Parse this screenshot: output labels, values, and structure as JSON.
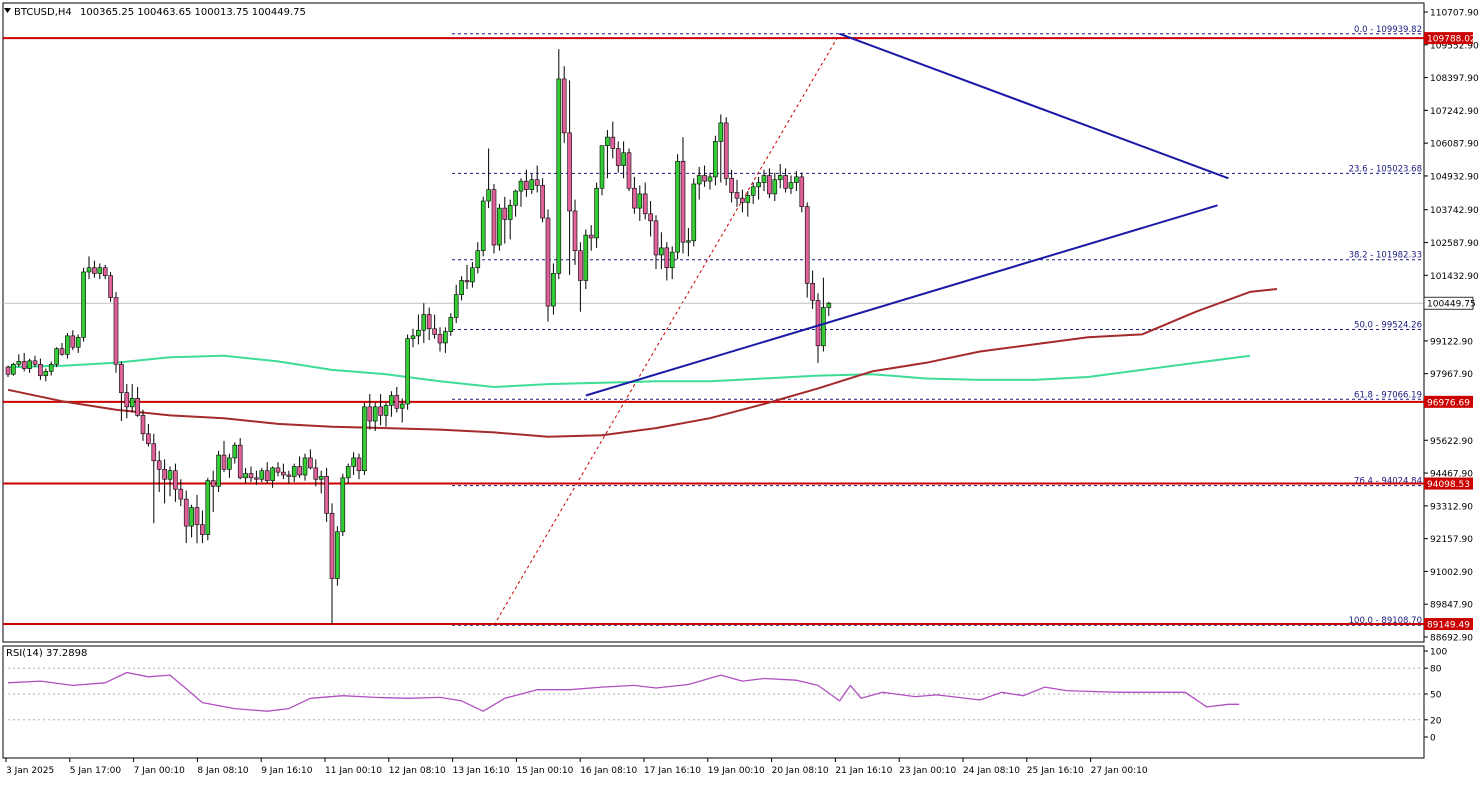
{
  "header": {
    "symbol": "BTCUSD,H4",
    "ohlc": "100365.25 100463.65 100013.75 100449.75"
  },
  "indicator": {
    "label": "RSI(14) 37.2898",
    "levels": [
      "100",
      "80",
      "50",
      "20",
      "0"
    ]
  },
  "colors": {
    "bull_candle": "#32cd32",
    "bear_candle": "#e0609a",
    "ma_fast": "#3ddc97",
    "ma_slow": "#a52a2a",
    "trendline": "#1a1aa8",
    "horizontal_level": "#cc0000",
    "fib": "#1a1a80",
    "rsi_line": "#b050c0",
    "price_badge": "#cc0000",
    "current_price_badge": "#ffffff"
  },
  "chart_data": {
    "type": "candlestick",
    "ylim": [
      88692.9,
      110707.9
    ],
    "price_ticks": [
      "110707.90",
      "109552.90",
      "108397.90",
      "107242.90",
      "106087.90",
      "104932.90",
      "103742.90",
      "102587.90",
      "101432.90",
      "99122.90",
      "97967.90",
      "95622.90",
      "94467.90",
      "93312.90",
      "92157.90",
      "91002.90",
      "89847.90",
      "88692.90"
    ],
    "time_labels": [
      "3 Jan 2025",
      "5 Jan 17:00",
      "7 Jan 00:10",
      "8 Jan 08:10",
      "9 Jan 16:10",
      "11 Jan 00:10",
      "12 Jan 08:10",
      "13 Jan 16:10",
      "15 Jan 00:10",
      "16 Jan 08:10",
      "17 Jan 16:10",
      "19 Jan 00:10",
      "20 Jan 08:10",
      "21 Jan 16:10",
      "23 Jan 00:10",
      "24 Jan 08:10",
      "25 Jan 16:10",
      "27 Jan 00:10"
    ],
    "horizontal_levels": [
      {
        "price": 109788.02,
        "label": "109788.02"
      },
      {
        "price": 96976.69,
        "label": "96976.69"
      },
      {
        "price": 94098.53,
        "label": "94098.53"
      },
      {
        "price": 89149.49,
        "label": "89149.49"
      }
    ],
    "current_price": {
      "price": 100449.75,
      "label": "100449.75"
    },
    "fibonacci": [
      {
        "price": 109939.82,
        "label": "0.0 - 109939.82"
      },
      {
        "price": 105023.68,
        "label": "23.6 - 105023.68"
      },
      {
        "price": 101982.33,
        "label": "38.2 - 101982.33"
      },
      {
        "price": 99524.26,
        "label": "50.0 - 99524.26"
      },
      {
        "price": 97066.19,
        "label": "61.8 - 97066.19"
      },
      {
        "price": 94024.84,
        "label": "76.4 - 94024.84"
      },
      {
        "price": 89108.7,
        "label": "100.0 - 89108.70"
      }
    ],
    "fib_anchor": {
      "low": {
        "bar": 90,
        "price": 89108.7
      },
      "high": {
        "bar": 154,
        "price": 109939.82
      }
    },
    "trendlines": [
      {
        "from": {
          "bar": 107,
          "price": 97200
        },
        "to": {
          "bar": 224,
          "price": 103900
        }
      },
      {
        "from": {
          "bar": 154,
          "price": 109939
        },
        "to": {
          "bar": 226,
          "price": 104850
        }
      }
    ],
    "candles": [
      [
        98200,
        98250,
        97850,
        97950
      ],
      [
        97950,
        98350,
        97900,
        98300
      ],
      [
        98300,
        98650,
        98200,
        98400
      ],
      [
        98400,
        98700,
        98050,
        98150
      ],
      [
        98150,
        98500,
        98000,
        98420
      ],
      [
        98420,
        98600,
        98200,
        98300
      ],
      [
        98300,
        98500,
        97750,
        97900
      ],
      [
        97900,
        98150,
        97700,
        98050
      ],
      [
        98050,
        98400,
        97900,
        98300
      ],
      [
        98300,
        98900,
        98200,
        98850
      ],
      [
        98850,
        99050,
        98600,
        98650
      ],
      [
        98650,
        99400,
        98500,
        99300
      ],
      [
        99300,
        99500,
        98800,
        98900
      ],
      [
        98900,
        99350,
        98700,
        99250
      ],
      [
        99250,
        101700,
        99100,
        101550
      ],
      [
        101550,
        102100,
        101300,
        101700
      ],
      [
        101700,
        101950,
        101350,
        101500
      ],
      [
        101500,
        101850,
        101300,
        101700
      ],
      [
        101700,
        101800,
        101300,
        101420
      ],
      [
        101420,
        101550,
        100500,
        100650
      ],
      [
        100650,
        100850,
        98000,
        98300
      ],
      [
        98300,
        98400,
        96300,
        97300
      ],
      [
        97300,
        97600,
        96400,
        96800
      ],
      [
        96800,
        97600,
        96600,
        97100
      ],
      [
        97100,
        97500,
        96450,
        96500
      ],
      [
        96500,
        96700,
        95600,
        95850
      ],
      [
        95850,
        96200,
        95400,
        95500
      ],
      [
        95500,
        95850,
        92700,
        94900
      ],
      [
        94900,
        95250,
        93800,
        94600
      ],
      [
        94600,
        94950,
        93400,
        94250
      ],
      [
        94250,
        94700,
        93650,
        94550
      ],
      [
        94550,
        94800,
        93450,
        93900
      ],
      [
        93900,
        94250,
        93300,
        93550
      ],
      [
        93550,
        93850,
        92000,
        92600
      ],
      [
        92600,
        93350,
        92200,
        93250
      ],
      [
        93250,
        93700,
        92000,
        92650
      ],
      [
        92650,
        93150,
        92000,
        92300
      ],
      [
        92300,
        94300,
        92100,
        94200
      ],
      [
        94200,
        94550,
        93100,
        94000
      ],
      [
        94000,
        95250,
        93800,
        95100
      ],
      [
        95100,
        95600,
        94500,
        94600
      ],
      [
        94600,
        95150,
        94300,
        95000
      ],
      [
        95000,
        95550,
        94800,
        95450
      ],
      [
        95450,
        95700,
        94250,
        94300
      ],
      [
        94300,
        94650,
        94100,
        94450
      ],
      [
        94450,
        94700,
        94150,
        94300
      ],
      [
        94300,
        94550,
        94050,
        94250
      ],
      [
        94250,
        94650,
        94150,
        94550
      ],
      [
        94550,
        94850,
        94100,
        94200
      ],
      [
        94200,
        94700,
        93950,
        94650
      ],
      [
        94650,
        94850,
        94350,
        94500
      ],
      [
        94500,
        94800,
        94250,
        94400
      ],
      [
        94400,
        94550,
        94100,
        94350
      ],
      [
        94350,
        94800,
        94150,
        94700
      ],
      [
        94700,
        95050,
        94300,
        94400
      ],
      [
        94400,
        95150,
        94200,
        95000
      ],
      [
        95000,
        95300,
        94600,
        94650
      ],
      [
        94650,
        94950,
        94000,
        94250
      ],
      [
        94250,
        94550,
        93750,
        94350
      ],
      [
        94350,
        94650,
        92750,
        93050
      ],
      [
        93050,
        93400,
        89150,
        90750
      ],
      [
        90750,
        92600,
        90500,
        92400
      ],
      [
        92400,
        94450,
        92250,
        94300
      ],
      [
        94300,
        94800,
        94100,
        94700
      ],
      [
        94700,
        95200,
        94400,
        95000
      ],
      [
        95000,
        95150,
        94250,
        94550
      ],
      [
        94550,
        96950,
        94400,
        96800
      ],
      [
        96800,
        97250,
        96000,
        96300
      ],
      [
        96300,
        96950,
        95950,
        96800
      ],
      [
        96800,
        97250,
        96150,
        96500
      ],
      [
        96500,
        96950,
        96100,
        96850
      ],
      [
        96850,
        97350,
        96450,
        97200
      ],
      [
        97200,
        97500,
        96600,
        96750
      ],
      [
        96750,
        97100,
        96250,
        96900
      ],
      [
        96900,
        99350,
        96700,
        99200
      ],
      [
        99200,
        99550,
        98900,
        99300
      ],
      [
        99300,
        100050,
        99000,
        99500
      ],
      [
        99500,
        100450,
        99050,
        100050
      ],
      [
        100050,
        100300,
        99150,
        99550
      ],
      [
        99550,
        100050,
        99200,
        99350
      ],
      [
        99350,
        99600,
        98750,
        99050
      ],
      [
        99050,
        99600,
        98700,
        99450
      ],
      [
        99450,
        100100,
        99300,
        99950
      ],
      [
        99950,
        101100,
        99750,
        100750
      ],
      [
        100750,
        101400,
        100550,
        101250
      ],
      [
        101250,
        101800,
        100950,
        101200
      ],
      [
        101200,
        101900,
        101000,
        101700
      ],
      [
        101700,
        102600,
        101500,
        102300
      ],
      [
        102300,
        104200,
        102100,
        104050
      ],
      [
        104050,
        105900,
        103800,
        104450
      ],
      [
        104450,
        104650,
        102200,
        102500
      ],
      [
        102500,
        103950,
        102300,
        103800
      ],
      [
        103800,
        104200,
        102550,
        103400
      ],
      [
        103400,
        104100,
        102700,
        103900
      ],
      [
        103900,
        104450,
        103500,
        104400
      ],
      [
        104400,
        104850,
        103850,
        104750
      ],
      [
        104750,
        105150,
        104200,
        104450
      ],
      [
        104450,
        105000,
        104300,
        104800
      ],
      [
        104800,
        105300,
        104350,
        104600
      ],
      [
        104600,
        104850,
        103300,
        103450
      ],
      [
        103450,
        103750,
        99800,
        100350
      ],
      [
        100350,
        101850,
        100050,
        101500
      ],
      [
        101500,
        109400,
        101300,
        108350
      ],
      [
        108350,
        108800,
        106100,
        106450
      ],
      [
        106450,
        108300,
        101450,
        103700
      ],
      [
        103700,
        104100,
        101800,
        102300
      ],
      [
        102300,
        102600,
        100150,
        101250
      ],
      [
        101250,
        103050,
        100950,
        102850
      ],
      [
        102850,
        103200,
        102300,
        102750
      ],
      [
        102750,
        104700,
        102400,
        104500
      ],
      [
        104500,
        105950,
        104250,
        106000
      ],
      [
        106000,
        106550,
        104850,
        106300
      ],
      [
        106300,
        106850,
        105550,
        105900
      ],
      [
        105900,
        106150,
        105050,
        105300
      ],
      [
        105300,
        106150,
        104850,
        105750
      ],
      [
        105750,
        105900,
        104400,
        104500
      ],
      [
        104500,
        104900,
        103600,
        103800
      ],
      [
        103800,
        104600,
        103350,
        104300
      ],
      [
        104300,
        104700,
        103400,
        103600
      ],
      [
        103600,
        104050,
        102800,
        103350
      ],
      [
        103350,
        103550,
        101650,
        102150
      ],
      [
        102150,
        102950,
        101650,
        102400
      ],
      [
        102400,
        102600,
        101250,
        101700
      ],
      [
        101700,
        102450,
        101300,
        102250
      ],
      [
        102250,
        105700,
        102000,
        105450
      ],
      [
        105450,
        106300,
        102200,
        102600
      ],
      [
        102600,
        103100,
        102100,
        102650
      ],
      [
        102650,
        104850,
        102450,
        104650
      ],
      [
        104650,
        105250,
        104100,
        104950
      ],
      [
        104950,
        105300,
        104550,
        104750
      ],
      [
        104750,
        105050,
        104450,
        104900
      ],
      [
        104900,
        106350,
        104600,
        106150
      ],
      [
        106150,
        107100,
        104700,
        106800
      ],
      [
        106800,
        107000,
        104600,
        104850
      ],
      [
        104850,
        105150,
        104000,
        104350
      ],
      [
        104350,
        104800,
        103850,
        104150
      ],
      [
        104150,
        104450,
        103650,
        104000
      ],
      [
        104000,
        104400,
        103500,
        104250
      ],
      [
        104250,
        104700,
        103950,
        104550
      ],
      [
        104550,
        104900,
        104100,
        104700
      ],
      [
        104700,
        105150,
        104400,
        104950
      ],
      [
        104950,
        105200,
        104150,
        104300
      ],
      [
        104300,
        105050,
        104050,
        104800
      ],
      [
        104800,
        105350,
        104500,
        104950
      ],
      [
        104950,
        105200,
        104350,
        104500
      ],
      [
        104500,
        104950,
        104300,
        104700
      ],
      [
        104700,
        105100,
        104400,
        104900
      ],
      [
        104900,
        105050,
        103650,
        103850
      ],
      [
        103850,
        104000,
        100650,
        101150
      ],
      [
        101150,
        101600,
        100250,
        100550
      ],
      [
        100550,
        100800,
        98350,
        98950
      ],
      [
        98950,
        101350,
        98750,
        100300
      ],
      [
        100300,
        100500,
        100000,
        100450
      ]
    ],
    "ma_fast": [
      [
        0,
        98200
      ],
      [
        10,
        98250
      ],
      [
        20,
        98350
      ],
      [
        30,
        98550
      ],
      [
        40,
        98600
      ],
      [
        50,
        98400
      ],
      [
        60,
        98100
      ],
      [
        70,
        97950
      ],
      [
        80,
        97700
      ],
      [
        90,
        97500
      ],
      [
        100,
        97600
      ],
      [
        110,
        97650
      ],
      [
        120,
        97700
      ],
      [
        130,
        97700
      ],
      [
        140,
        97800
      ],
      [
        150,
        97900
      ],
      [
        160,
        97950
      ],
      [
        170,
        97800
      ],
      [
        180,
        97750
      ],
      [
        190,
        97750
      ],
      [
        200,
        97850
      ],
      [
        210,
        98100
      ],
      [
        220,
        98350
      ],
      [
        230,
        98600
      ]
    ],
    "ma_slow": [
      [
        0,
        97400
      ],
      [
        10,
        97000
      ],
      [
        20,
        96700
      ],
      [
        30,
        96500
      ],
      [
        40,
        96400
      ],
      [
        50,
        96200
      ],
      [
        60,
        96100
      ],
      [
        70,
        96050
      ],
      [
        80,
        96000
      ],
      [
        90,
        95900
      ],
      [
        100,
        95750
      ],
      [
        110,
        95800
      ],
      [
        120,
        96050
      ],
      [
        130,
        96400
      ],
      [
        140,
        96900
      ],
      [
        150,
        97450
      ],
      [
        160,
        98050
      ],
      [
        170,
        98350
      ],
      [
        180,
        98750
      ],
      [
        190,
        99000
      ],
      [
        200,
        99250
      ],
      [
        210,
        99350
      ],
      [
        220,
        100150
      ],
      [
        230,
        100850
      ],
      [
        235,
        100950
      ]
    ],
    "rsi": [
      [
        0,
        63
      ],
      [
        6,
        65
      ],
      [
        12,
        60
      ],
      [
        18,
        63
      ],
      [
        22,
        75
      ],
      [
        26,
        70
      ],
      [
        30,
        72
      ],
      [
        33,
        56
      ],
      [
        36,
        40
      ],
      [
        42,
        33
      ],
      [
        48,
        30
      ],
      [
        52,
        33
      ],
      [
        56,
        45
      ],
      [
        62,
        48
      ],
      [
        68,
        46
      ],
      [
        74,
        45
      ],
      [
        80,
        46
      ],
      [
        84,
        42
      ],
      [
        88,
        30
      ],
      [
        92,
        45
      ],
      [
        98,
        55
      ],
      [
        104,
        55
      ],
      [
        110,
        58
      ],
      [
        116,
        60
      ],
      [
        120,
        57
      ],
      [
        126,
        61
      ],
      [
        132,
        72
      ],
      [
        136,
        65
      ],
      [
        140,
        68
      ],
      [
        146,
        66
      ],
      [
        150,
        60
      ],
      [
        154,
        42
      ],
      [
        156,
        60
      ],
      [
        158,
        45
      ],
      [
        162,
        52
      ],
      [
        168,
        47
      ],
      [
        172,
        49
      ],
      [
        176,
        46
      ],
      [
        180,
        43
      ],
      [
        184,
        52
      ],
      [
        188,
        48
      ],
      [
        192,
        58
      ],
      [
        196,
        54
      ],
      [
        200,
        53
      ],
      [
        206,
        52
      ],
      [
        212,
        52
      ],
      [
        218,
        52
      ],
      [
        222,
        35
      ],
      [
        226,
        38
      ],
      [
        228,
        38
      ]
    ]
  }
}
